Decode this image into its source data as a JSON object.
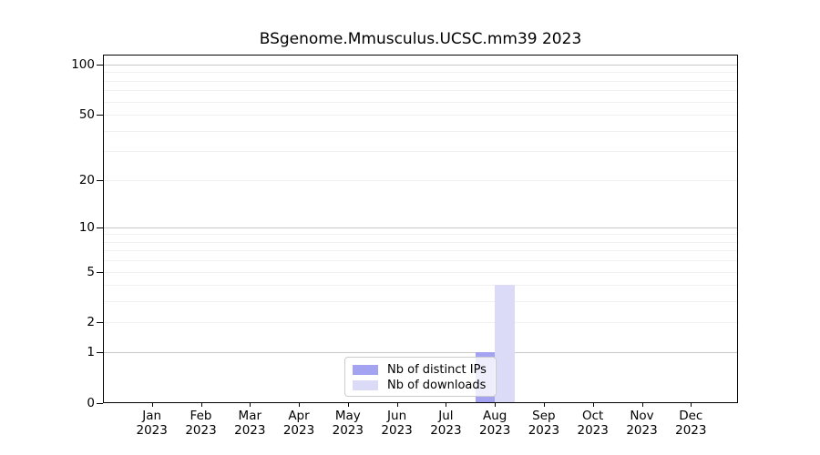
{
  "chart_data": {
    "type": "bar",
    "title": "BSgenome.Mmusculus.UCSC.mm39 2023",
    "yscale": "log1p",
    "categories": [
      "Jan",
      "Feb",
      "Mar",
      "Apr",
      "May",
      "Jun",
      "Jul",
      "Aug",
      "Sep",
      "Oct",
      "Nov",
      "Dec"
    ],
    "year_label": "2023",
    "series": [
      {
        "name": "Nb of distinct IPs",
        "color": "#a3a3f1",
        "values": [
          0,
          0,
          0,
          0,
          0,
          0,
          0,
          1,
          0,
          0,
          0,
          0
        ]
      },
      {
        "name": "Nb of downloads",
        "color": "#dbdbf8",
        "values": [
          0,
          0,
          0,
          0,
          0,
          0,
          0,
          4,
          0,
          0,
          0,
          0
        ]
      }
    ],
    "yticks": [
      0,
      1,
      2,
      5,
      10,
      20,
      50,
      100
    ],
    "ylim": [
      0,
      115
    ],
    "grid": {
      "major_values": [
        1,
        10,
        100
      ],
      "minor_values": [
        2,
        3,
        4,
        5,
        6,
        7,
        8,
        9,
        20,
        30,
        40,
        50,
        60,
        70,
        80,
        90
      ],
      "major_color": "#c8c8c8",
      "minor_color": "#f0f0f0"
    },
    "legend": {
      "position": "lower center",
      "frame_color": "#cccccc",
      "background": "rgba(255,255,255,0.8)"
    },
    "axis_color": "#000000"
  }
}
